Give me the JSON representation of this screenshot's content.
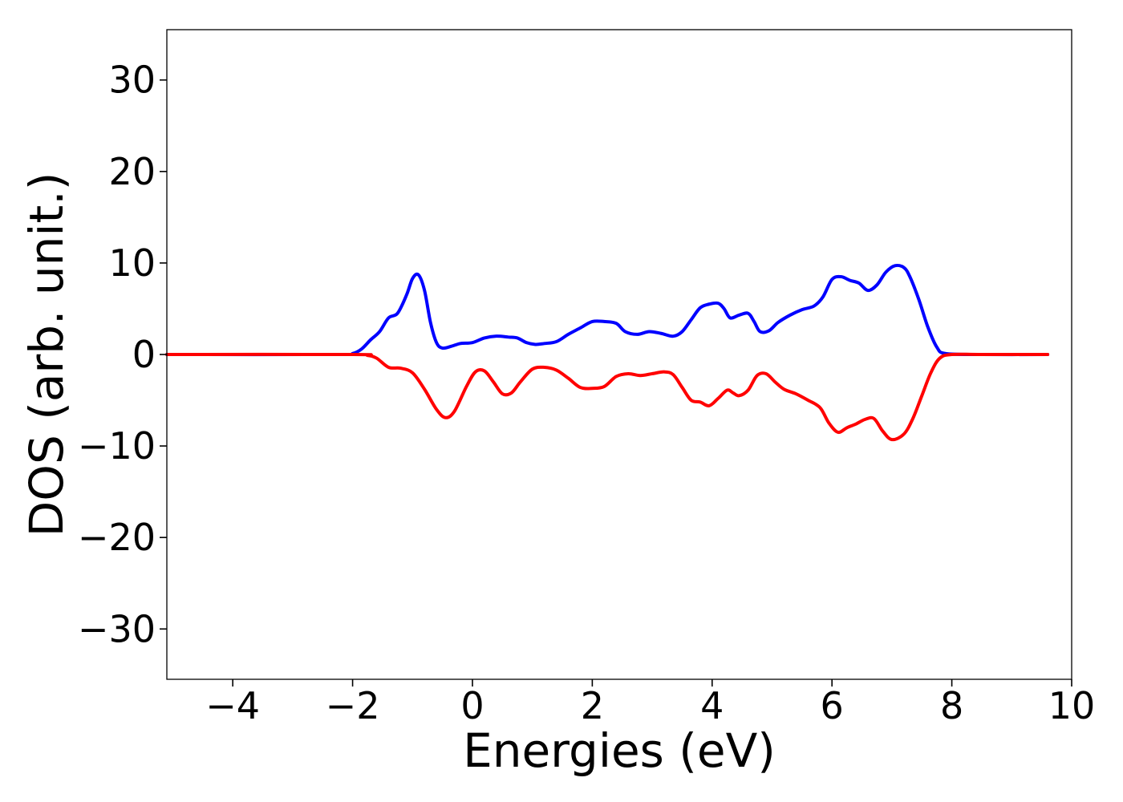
{
  "chart_data": {
    "type": "line",
    "xlabel": "Energies (eV)",
    "ylabel": "DOS (arb. unit.)",
    "xlim": [
      -5.1,
      10
    ],
    "ylim": [
      -35.5,
      35.5
    ],
    "xticks": [
      -4,
      -2,
      0,
      2,
      4,
      6,
      8,
      10
    ],
    "xtick_labels": [
      "−4",
      "−2",
      "0",
      "2",
      "4",
      "6",
      "8",
      "10"
    ],
    "yticks": [
      -30,
      -20,
      -10,
      0,
      10,
      20,
      30
    ],
    "ytick_labels": [
      "−30",
      "−20",
      "−10",
      "0",
      "10",
      "20",
      "30"
    ],
    "grid": false,
    "series": [
      {
        "color": "#0000ff",
        "x": [
          -5.1,
          -2.2,
          -2.0,
          -1.85,
          -1.7,
          -1.55,
          -1.4,
          -1.25,
          -1.1,
          -1.0,
          -0.9,
          -0.8,
          -0.7,
          -0.6,
          -0.5,
          -0.35,
          -0.2,
          0.0,
          0.2,
          0.4,
          0.6,
          0.75,
          0.9,
          1.05,
          1.2,
          1.4,
          1.6,
          1.8,
          2.0,
          2.2,
          2.4,
          2.55,
          2.75,
          2.95,
          3.15,
          3.35,
          3.5,
          3.65,
          3.8,
          3.95,
          4.1,
          4.2,
          4.3,
          4.45,
          4.6,
          4.7,
          4.8,
          4.95,
          5.1,
          5.3,
          5.5,
          5.7,
          5.85,
          6.0,
          6.15,
          6.3,
          6.45,
          6.6,
          6.75,
          6.9,
          7.05,
          7.2,
          7.3,
          7.45,
          7.6,
          7.75,
          7.9,
          8.5,
          9.6
        ],
        "y": [
          0,
          0,
          0.1,
          0.6,
          1.6,
          2.5,
          4.0,
          4.5,
          6.5,
          8.3,
          8.7,
          7.0,
          3.5,
          1.3,
          0.7,
          0.9,
          1.2,
          1.3,
          1.8,
          2.0,
          1.9,
          1.8,
          1.3,
          1.1,
          1.2,
          1.4,
          2.2,
          2.9,
          3.6,
          3.6,
          3.4,
          2.5,
          2.2,
          2.5,
          2.3,
          2.0,
          2.5,
          3.8,
          5.1,
          5.5,
          5.6,
          5.0,
          4.0,
          4.3,
          4.5,
          3.6,
          2.5,
          2.6,
          3.5,
          4.3,
          4.9,
          5.3,
          6.3,
          8.2,
          8.5,
          8.1,
          7.8,
          7.0,
          7.6,
          9.0,
          9.7,
          9.5,
          8.5,
          6.0,
          3.0,
          0.8,
          0.1,
          0,
          0
        ]
      },
      {
        "color": "#ff0000",
        "x": [
          -5.1,
          -2.0,
          -1.75,
          -1.6,
          -1.4,
          -1.2,
          -1.0,
          -0.8,
          -0.6,
          -0.45,
          -0.3,
          -0.1,
          0.05,
          0.2,
          0.35,
          0.5,
          0.65,
          0.8,
          1.0,
          1.2,
          1.4,
          1.6,
          1.8,
          2.0,
          2.2,
          2.4,
          2.6,
          2.8,
          3.0,
          3.2,
          3.35,
          3.5,
          3.65,
          3.8,
          3.95,
          4.1,
          4.25,
          4.35,
          4.45,
          4.6,
          4.75,
          4.9,
          5.05,
          5.2,
          5.4,
          5.6,
          5.8,
          5.95,
          6.1,
          6.25,
          6.4,
          6.55,
          6.7,
          6.85,
          7.0,
          7.2,
          7.35,
          7.5,
          7.65,
          7.8,
          8.0,
          8.5,
          9.6
        ],
        "y": [
          0,
          0,
          -0.1,
          -0.4,
          -1.4,
          -1.5,
          -2.0,
          -3.8,
          -6.0,
          -6.9,
          -6.2,
          -3.5,
          -1.9,
          -1.8,
          -3.0,
          -4.3,
          -4.2,
          -3.0,
          -1.6,
          -1.4,
          -1.7,
          -2.6,
          -3.6,
          -3.7,
          -3.5,
          -2.4,
          -2.1,
          -2.3,
          -2.1,
          -1.9,
          -2.2,
          -3.6,
          -5.0,
          -5.2,
          -5.6,
          -4.8,
          -3.9,
          -4.2,
          -4.5,
          -3.9,
          -2.3,
          -2.1,
          -3.0,
          -3.8,
          -4.3,
          -5.0,
          -5.8,
          -7.5,
          -8.5,
          -8.0,
          -7.6,
          -7.1,
          -7.0,
          -8.4,
          -9.3,
          -8.7,
          -7.0,
          -4.5,
          -2.0,
          -0.4,
          0,
          0,
          0
        ]
      }
    ]
  }
}
